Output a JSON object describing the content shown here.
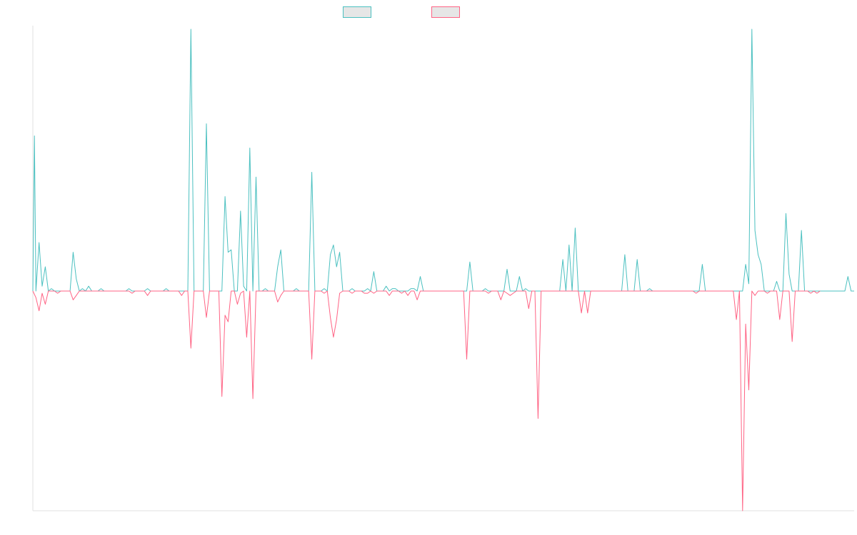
{
  "chart_data": {
    "type": "line",
    "title": "",
    "xlabel": "",
    "ylabel": "",
    "grid": false,
    "legend_position": "top-center",
    "ylim": [
      -100,
      100
    ],
    "colors": {
      "series_a": "#4bc0c0",
      "series_b": "#ff6384",
      "legend_fill": "#e6e6e6",
      "axis": "#e0e0e0"
    },
    "series": [
      {
        "values": [
          [
            0,
            0
          ],
          [
            0.5,
            64
          ],
          [
            1,
            0
          ],
          [
            2,
            20
          ],
          [
            3,
            2
          ],
          [
            4,
            10
          ],
          [
            5,
            0
          ],
          [
            6,
            1
          ],
          [
            7,
            0
          ],
          [
            8,
            0
          ],
          [
            12,
            0
          ],
          [
            13,
            16
          ],
          [
            14,
            5
          ],
          [
            15,
            0
          ],
          [
            16,
            1
          ],
          [
            17,
            0
          ],
          [
            18,
            2
          ],
          [
            19,
            0
          ],
          [
            21,
            0
          ],
          [
            22,
            1
          ],
          [
            23,
            0
          ],
          [
            30,
            0
          ],
          [
            31,
            1
          ],
          [
            32,
            0
          ],
          [
            36,
            0
          ],
          [
            37,
            1
          ],
          [
            38,
            0
          ],
          [
            42,
            0
          ],
          [
            43,
            1
          ],
          [
            44,
            0
          ],
          [
            46,
            0
          ],
          [
            48,
            0
          ],
          [
            50,
            0
          ],
          [
            51,
            108
          ],
          [
            52,
            0
          ],
          [
            55,
            0
          ],
          [
            56,
            69
          ],
          [
            57,
            0
          ],
          [
            61,
            0
          ],
          [
            62,
            39
          ],
          [
            63,
            16
          ],
          [
            64,
            17
          ],
          [
            65,
            0
          ],
          [
            66,
            0
          ],
          [
            67,
            33
          ],
          [
            68,
            2
          ],
          [
            69,
            0
          ],
          [
            70,
            59
          ],
          [
            71,
            0
          ],
          [
            72,
            47
          ],
          [
            73,
            0
          ],
          [
            74,
            0
          ],
          [
            75,
            1
          ],
          [
            76,
            0
          ],
          [
            78,
            0
          ],
          [
            79,
            10
          ],
          [
            80,
            17
          ],
          [
            81,
            0
          ],
          [
            84,
            0
          ],
          [
            85,
            1
          ],
          [
            86,
            0
          ],
          [
            89,
            0
          ],
          [
            90,
            49
          ],
          [
            91,
            0
          ],
          [
            93,
            0
          ],
          [
            94,
            1
          ],
          [
            95,
            0
          ],
          [
            96,
            15
          ],
          [
            97,
            19
          ],
          [
            98,
            10
          ],
          [
            99,
            16
          ],
          [
            100,
            0
          ],
          [
            102,
            0
          ],
          [
            103,
            1
          ],
          [
            104,
            0
          ],
          [
            107,
            0
          ],
          [
            108,
            1
          ],
          [
            109,
            0
          ],
          [
            110,
            8
          ],
          [
            111,
            0
          ],
          [
            113,
            0
          ],
          [
            114,
            2
          ],
          [
            115,
            0
          ],
          [
            116,
            1
          ],
          [
            117,
            1
          ],
          [
            118,
            0
          ],
          [
            120,
            0
          ],
          [
            121,
            0
          ],
          [
            122,
            1
          ],
          [
            123,
            1
          ],
          [
            124,
            0
          ],
          [
            125,
            6
          ],
          [
            126,
            0
          ],
          [
            127,
            0
          ],
          [
            140,
            0
          ],
          [
            141,
            12
          ],
          [
            142,
            0
          ],
          [
            145,
            0
          ],
          [
            146,
            1
          ],
          [
            147,
            0
          ],
          [
            152,
            0
          ],
          [
            153,
            9
          ],
          [
            154,
            0
          ],
          [
            156,
            0
          ],
          [
            157,
            6
          ],
          [
            158,
            0
          ],
          [
            159,
            1
          ],
          [
            160,
            0
          ],
          [
            165,
            0
          ],
          [
            166,
            0
          ],
          [
            170,
            0
          ],
          [
            171,
            13
          ],
          [
            172,
            0
          ],
          [
            173,
            19
          ],
          [
            174,
            0
          ],
          [
            175,
            26
          ],
          [
            176,
            0
          ],
          [
            181,
            0
          ],
          [
            182,
            0
          ],
          [
            190,
            0
          ],
          [
            191,
            15
          ],
          [
            192,
            0
          ],
          [
            194,
            0
          ],
          [
            195,
            13
          ],
          [
            196,
            0
          ],
          [
            198,
            0
          ],
          [
            199,
            1
          ],
          [
            200,
            0
          ],
          [
            214,
            0
          ],
          [
            215,
            0
          ],
          [
            216,
            11
          ],
          [
            217,
            0
          ],
          [
            229,
            0
          ],
          [
            230,
            11
          ],
          [
            231,
            3
          ],
          [
            232,
            108
          ],
          [
            233,
            25
          ],
          [
            234,
            15
          ],
          [
            235,
            11
          ],
          [
            236,
            0
          ],
          [
            237,
            0
          ],
          [
            238,
            0
          ],
          [
            239,
            0
          ],
          [
            240,
            4
          ],
          [
            241,
            0
          ],
          [
            242,
            0
          ],
          [
            243,
            32
          ],
          [
            244,
            7
          ],
          [
            245,
            0
          ],
          [
            246,
            0
          ],
          [
            247,
            0
          ],
          [
            248,
            25
          ],
          [
            249,
            0
          ],
          [
            260,
            0
          ],
          [
            261,
            0
          ],
          [
            262,
            0
          ],
          [
            263,
            6
          ],
          [
            264,
            0
          ],
          [
            265,
            0
          ]
        ]
      },
      {
        "values": [
          [
            0,
            0
          ],
          [
            1,
            -3
          ],
          [
            2,
            -9
          ],
          [
            3,
            -1
          ],
          [
            4,
            -6
          ],
          [
            5,
            0
          ],
          [
            7,
            0
          ],
          [
            8,
            -1
          ],
          [
            9,
            0
          ],
          [
            12,
            0
          ],
          [
            13,
            -4
          ],
          [
            14,
            -2
          ],
          [
            15,
            0
          ],
          [
            31,
            0
          ],
          [
            32,
            -1
          ],
          [
            33,
            0
          ],
          [
            36,
            0
          ],
          [
            37,
            -2
          ],
          [
            38,
            0
          ],
          [
            47,
            0
          ],
          [
            48,
            -2
          ],
          [
            49,
            0
          ],
          [
            50,
            0
          ],
          [
            51,
            -26
          ],
          [
            52,
            0
          ],
          [
            55,
            0
          ],
          [
            56,
            -12
          ],
          [
            57,
            0
          ],
          [
            60,
            0
          ],
          [
            61,
            -48
          ],
          [
            62,
            -11
          ],
          [
            63,
            -14
          ],
          [
            64,
            0
          ],
          [
            65,
            0
          ],
          [
            66,
            -6
          ],
          [
            67,
            -1
          ],
          [
            68,
            0
          ],
          [
            69,
            -21
          ],
          [
            70,
            0
          ],
          [
            71,
            -49
          ],
          [
            72,
            0
          ],
          [
            73,
            0
          ],
          [
            74,
            0
          ],
          [
            78,
            0
          ],
          [
            79,
            -5
          ],
          [
            80,
            -2
          ],
          [
            81,
            0
          ],
          [
            89,
            0
          ],
          [
            90,
            -31
          ],
          [
            91,
            0
          ],
          [
            93,
            0
          ],
          [
            94,
            -1
          ],
          [
            95,
            0
          ],
          [
            96,
            -12
          ],
          [
            97,
            -21
          ],
          [
            98,
            -13
          ],
          [
            99,
            -1
          ],
          [
            100,
            0
          ],
          [
            102,
            0
          ],
          [
            103,
            -1
          ],
          [
            104,
            0
          ],
          [
            106,
            0
          ],
          [
            107,
            -1
          ],
          [
            108,
            -1
          ],
          [
            109,
            0
          ],
          [
            110,
            -1
          ],
          [
            111,
            0
          ],
          [
            114,
            0
          ],
          [
            115,
            -2
          ],
          [
            116,
            0
          ],
          [
            118,
            0
          ],
          [
            119,
            -1
          ],
          [
            120,
            0
          ],
          [
            121,
            -2
          ],
          [
            122,
            0
          ],
          [
            123,
            0
          ],
          [
            124,
            -4
          ],
          [
            125,
            0
          ],
          [
            139,
            0
          ],
          [
            140,
            -31
          ],
          [
            141,
            0
          ],
          [
            146,
            0
          ],
          [
            147,
            -1
          ],
          [
            148,
            0
          ],
          [
            150,
            0
          ],
          [
            151,
            -4
          ],
          [
            152,
            0
          ],
          [
            153,
            -1
          ],
          [
            154,
            -2
          ],
          [
            155,
            -1
          ],
          [
            156,
            0
          ],
          [
            159,
            0
          ],
          [
            160,
            -8
          ],
          [
            161,
            0
          ],
          [
            162,
            0
          ],
          [
            163,
            -58
          ],
          [
            164,
            0
          ],
          [
            165,
            0
          ],
          [
            176,
            0
          ],
          [
            177,
            -10
          ],
          [
            178,
            0
          ],
          [
            179,
            -10
          ],
          [
            180,
            0
          ],
          [
            197,
            0
          ],
          [
            198,
            0
          ],
          [
            213,
            0
          ],
          [
            214,
            -1
          ],
          [
            215,
            0
          ],
          [
            226,
            0
          ],
          [
            227,
            -13
          ],
          [
            228,
            0
          ],
          [
            229,
            -100
          ],
          [
            230,
            -15
          ],
          [
            231,
            -45
          ],
          [
            232,
            0
          ],
          [
            233,
            -2
          ],
          [
            234,
            0
          ],
          [
            236,
            0
          ],
          [
            237,
            -1
          ],
          [
            238,
            0
          ],
          [
            240,
            0
          ],
          [
            241,
            -13
          ],
          [
            242,
            0
          ],
          [
            244,
            0
          ],
          [
            245,
            -23
          ],
          [
            246,
            0
          ],
          [
            250,
            0
          ],
          [
            251,
            -1
          ],
          [
            252,
            0
          ],
          [
            253,
            -1
          ],
          [
            254,
            0
          ]
        ]
      }
    ]
  }
}
